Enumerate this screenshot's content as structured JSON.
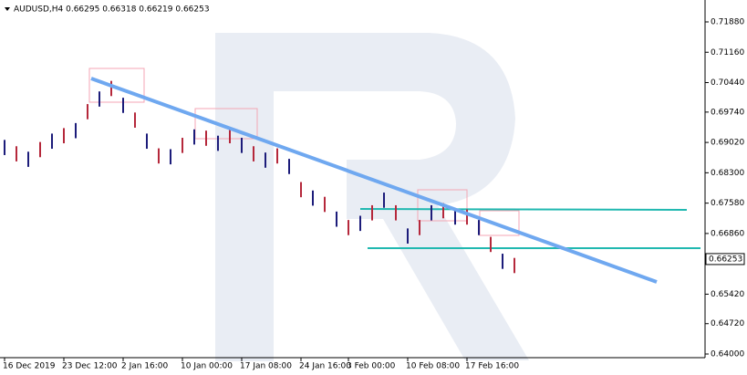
{
  "chart_data": {
    "type": "ohlc",
    "title": "AUDUSD,H4  0.66295 0.66318 0.66219 0.66253",
    "categories": [
      "16 Dec 2019",
      null,
      null,
      null,
      null,
      "23 Dec 12:00",
      null,
      null,
      null,
      null,
      "2 Jan 16:00",
      null,
      null,
      null,
      null,
      "10 Jan 00:00",
      null,
      null,
      null,
      null,
      "17 Jan 08:00",
      null,
      null,
      null,
      null,
      "24 Jan 16:00",
      null,
      null,
      null,
      "3 Feb 00:00",
      null,
      null,
      null,
      null,
      "10 Feb 08:00",
      null,
      null,
      null,
      null,
      "17 Feb 16:00",
      null,
      null,
      null,
      null
    ],
    "high": [
      0.6908,
      0.6893,
      0.688,
      0.6903,
      0.6923,
      0.6936,
      0.6948,
      0.6993,
      0.7023,
      0.7048,
      0.7008,
      0.6973,
      0.6923,
      0.6888,
      0.6886,
      0.6913,
      0.6933,
      0.693,
      0.6918,
      0.6936,
      0.6913,
      0.6893,
      0.6878,
      0.6888,
      0.6863,
      0.6808,
      0.6788,
      0.6773,
      0.6738,
      0.6718,
      0.6728,
      0.6753,
      0.6783,
      0.6753,
      0.6698,
      0.6718,
      0.6753,
      0.6758,
      0.6743,
      0.6743,
      0.6718,
      0.6678,
      0.6638,
      0.6628
    ],
    "low": [
      0.6872,
      0.6857,
      0.6844,
      0.6867,
      0.6887,
      0.69,
      0.6912,
      0.6957,
      0.6987,
      0.7012,
      0.6972,
      0.6937,
      0.6887,
      0.6852,
      0.685,
      0.6877,
      0.6897,
      0.6894,
      0.6882,
      0.69,
      0.6877,
      0.6857,
      0.6842,
      0.6852,
      0.6827,
      0.6772,
      0.6752,
      0.6737,
      0.6702,
      0.6682,
      0.6692,
      0.6717,
      0.6747,
      0.6717,
      0.6662,
      0.6682,
      0.6717,
      0.6722,
      0.6707,
      0.6707,
      0.6682,
      0.6642,
      0.6602,
      0.6592
    ],
    "color": "#1c1c7a",
    "last_price": 0.66253,
    "ylim": [
      0.64,
      0.7188
    ],
    "yticks": [
      {
        "value": 0.7188,
        "label": "0.71880"
      },
      {
        "value": 0.7116,
        "label": "0.71160"
      },
      {
        "value": 0.7044,
        "label": "0.70440"
      },
      {
        "value": 0.6974,
        "label": "0.69740"
      },
      {
        "value": 0.6902,
        "label": "0.69020"
      },
      {
        "value": 0.683,
        "label": "0.68300"
      },
      {
        "value": 0.6758,
        "label": "0.67580"
      },
      {
        "value": 0.6686,
        "label": "0.66860"
      },
      {
        "value": 0.6542,
        "label": "0.65420"
      },
      {
        "value": 0.6472,
        "label": "0.64720"
      },
      {
        "value": 0.64,
        "label": "0.64000"
      }
    ]
  }
}
